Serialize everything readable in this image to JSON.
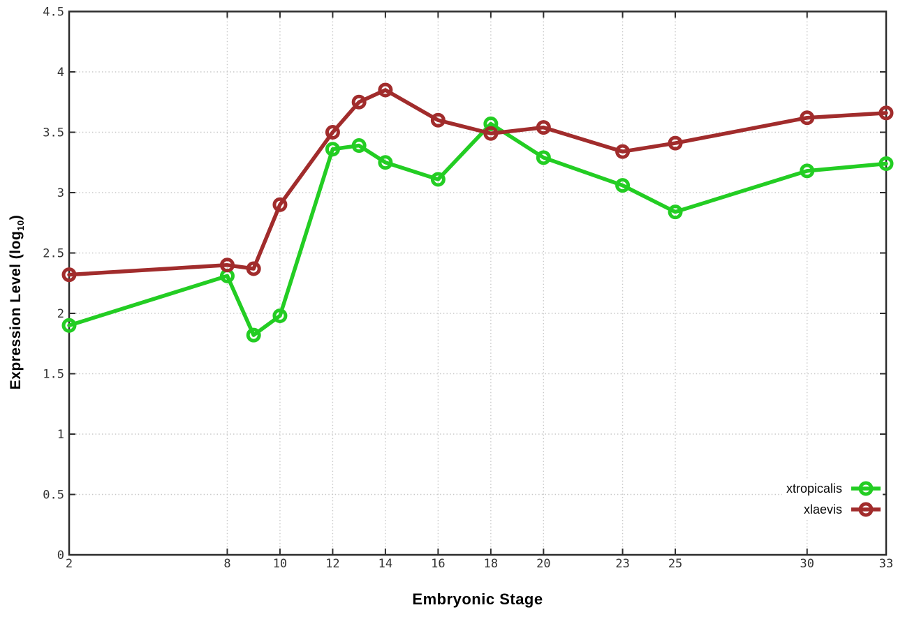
{
  "chart_data": {
    "type": "line",
    "title": "",
    "xlabel": "Embryonic Stage",
    "ylabel": "Expression Level (log10)",
    "ylabel_parts": {
      "main": "Expression Level (log",
      "sub": "10",
      "end": ")"
    },
    "x": [
      2,
      8,
      9,
      10,
      12,
      13,
      14,
      16,
      18,
      20,
      23,
      25,
      30,
      33
    ],
    "series": [
      {
        "name": "xtropicalis",
        "color": "#23cd23",
        "values": [
          1.9,
          2.31,
          1.82,
          1.98,
          3.36,
          3.39,
          3.25,
          3.11,
          3.57,
          3.29,
          3.06,
          2.84,
          3.18,
          3.24
        ]
      },
      {
        "name": "xlaevis",
        "color": "#a12c2c",
        "values": [
          2.32,
          2.4,
          2.37,
          2.9,
          3.5,
          3.75,
          3.85,
          3.6,
          3.49,
          3.54,
          3.34,
          3.41,
          3.62,
          3.66
        ]
      }
    ],
    "xlim": [
      2,
      33
    ],
    "ylim": [
      0,
      4.5
    ],
    "x_tick_values": [
      2,
      8,
      10,
      12,
      14,
      16,
      18,
      20,
      23,
      25,
      30,
      33
    ],
    "x_tick_labels": [
      "2",
      "8",
      "10",
      "12",
      "14",
      "16",
      "18",
      "20",
      "23",
      "25",
      "30",
      "33"
    ],
    "y_tick_values": [
      0,
      0.5,
      1,
      1.5,
      2,
      2.5,
      3,
      3.5,
      4,
      4.5
    ],
    "y_tick_labels": [
      "0",
      "0.5",
      "1",
      "1.5",
      "2",
      "2.5",
      "3",
      "3.5",
      "4",
      "4.5"
    ],
    "grid": true,
    "legend_position": "bottom-right"
  },
  "colors": {
    "background": "#ffffff",
    "border": "#2d2d2d",
    "grid": "#c8c8c8",
    "tick_text": "#333333",
    "series_xtropicalis": "#23cd23",
    "series_xlaevis": "#a12c2c"
  }
}
